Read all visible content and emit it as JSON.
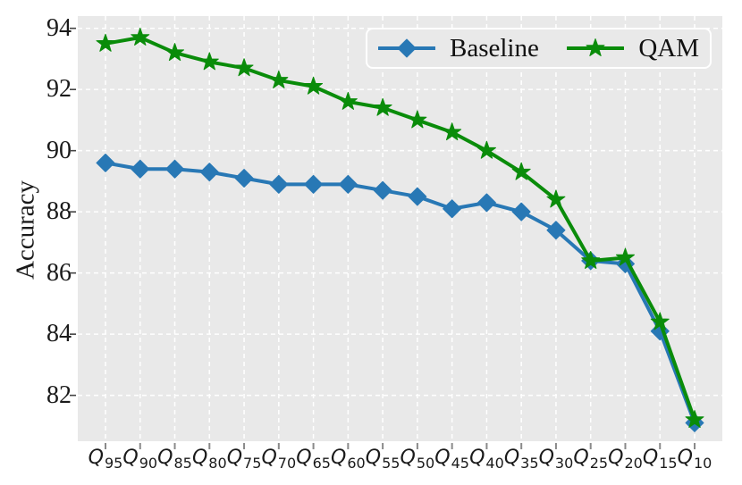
{
  "figure": {
    "background": "#ffffff",
    "plot_background": "#e9e9e9",
    "grid_color": "#ffffff",
    "tick_color": "#8a8a8a"
  },
  "chart_data": {
    "type": "line",
    "title": "",
    "xlabel": "",
    "ylabel": "Accuracy",
    "categories": [
      "Q95",
      "Q90",
      "Q85",
      "Q80",
      "Q75",
      "Q70",
      "Q65",
      "Q60",
      "Q55",
      "Q50",
      "Q45",
      "Q40",
      "Q35",
      "Q30",
      "Q25",
      "Q20",
      "Q15",
      "Q10"
    ],
    "series": [
      {
        "name": "Baseline",
        "color": "#2878b5",
        "marker": "diamond",
        "values": [
          89.6,
          89.4,
          89.4,
          89.3,
          89.1,
          88.9,
          88.9,
          88.9,
          88.7,
          88.5,
          88.1,
          88.3,
          88.0,
          87.4,
          86.4,
          86.3,
          84.1,
          81.1
        ]
      },
      {
        "name": "QAM",
        "color": "#0a8c0a",
        "marker": "star",
        "values": [
          93.5,
          93.7,
          93.2,
          92.9,
          92.7,
          92.3,
          92.1,
          91.6,
          91.4,
          91.0,
          90.6,
          90.0,
          89.3,
          88.4,
          86.4,
          86.5,
          84.4,
          81.2
        ]
      }
    ],
    "yticks": [
      82,
      84,
      86,
      88,
      90,
      92,
      94
    ],
    "ylim": [
      80.5,
      94.4
    ],
    "grid": true,
    "legend_position": "upper right"
  }
}
